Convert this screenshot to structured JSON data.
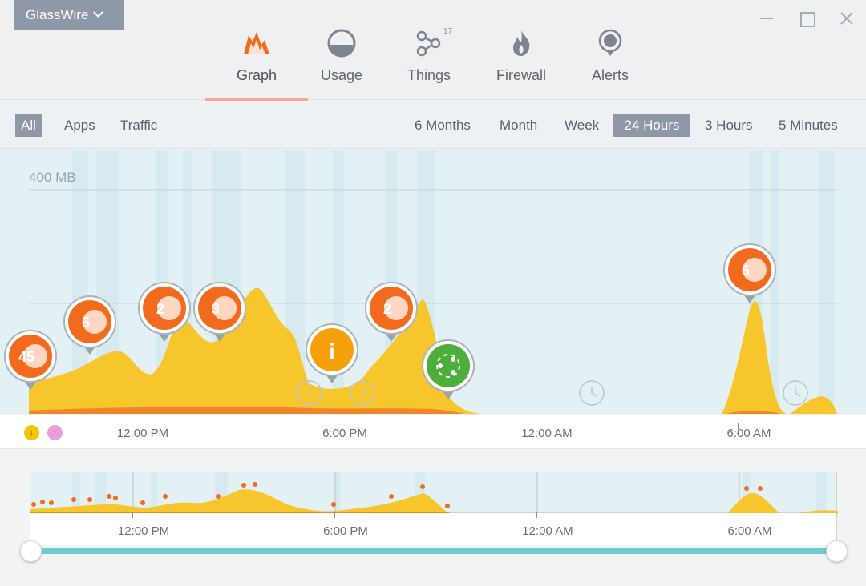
{
  "app": {
    "menu_label": "GlassWire"
  },
  "nav": {
    "tabs": [
      {
        "label": "Graph",
        "icon": "graph-icon",
        "active": true
      },
      {
        "label": "Usage",
        "icon": "usage-icon"
      },
      {
        "label": "Things",
        "icon": "things-icon",
        "badge": "17"
      },
      {
        "label": "Firewall",
        "icon": "firewall-icon"
      },
      {
        "label": "Alerts",
        "icon": "alerts-icon"
      }
    ]
  },
  "filters": {
    "view": [
      "All",
      "Apps",
      "Traffic"
    ],
    "view_selected": "All",
    "ranges": [
      "6 Months",
      "Month",
      "Week",
      "24 Hours",
      "3 Hours",
      "5 Minutes"
    ],
    "range_selected": "24 Hours"
  },
  "graph": {
    "ylabel": "400 MB",
    "time_labels": [
      "12:00 PM",
      "6:00 PM",
      "12:00 AM",
      "6:00 AM"
    ],
    "markers": [
      {
        "count": "45",
        "type": "alert"
      },
      {
        "count": "6",
        "type": "alert"
      },
      {
        "count": "2",
        "type": "alert"
      },
      {
        "count": "3",
        "type": "alert"
      },
      {
        "count": "i",
        "type": "info"
      },
      {
        "count": "2",
        "type": "alert"
      },
      {
        "count": "",
        "type": "network"
      },
      {
        "count": "6",
        "type": "alert"
      }
    ]
  },
  "overview": {
    "time_labels": [
      "12:00 PM",
      "6:00 PM",
      "12:00 AM",
      "6:00 AM"
    ]
  },
  "legend": {
    "download_symbol": "↓",
    "upload_symbol": "↑"
  },
  "colors": {
    "accent": "#f26b1d",
    "download": "#f5c400",
    "upload": "#ea9dd8",
    "slider": "#6fcbd0"
  }
}
